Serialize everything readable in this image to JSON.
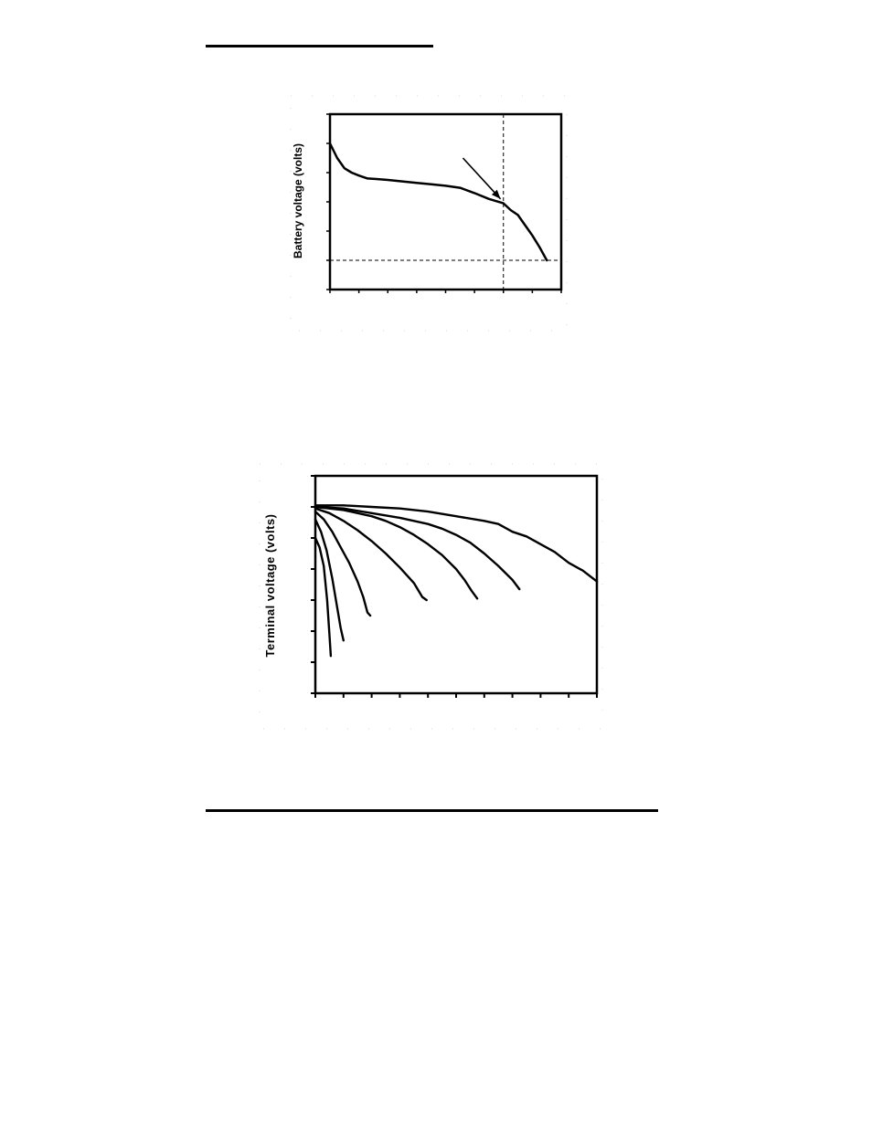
{
  "chart_data": [
    {
      "type": "line",
      "title": "",
      "xlabel": "",
      "ylabel": "Battery voltage (volts)",
      "xlim": [
        0,
        8
      ],
      "ylim": [
        0,
        6
      ],
      "x_ticks": [
        0,
        1,
        2,
        3,
        4,
        5,
        6,
        7,
        8
      ],
      "y_ticks": [
        0,
        1,
        2,
        3,
        4,
        5,
        6
      ],
      "grid": false,
      "series": [
        {
          "x": [
            0,
            0.25,
            0.5,
            0.75,
            1.0,
            1.3,
            1.6,
            2.0,
            2.5,
            3.0,
            3.5,
            4.0,
            4.5,
            5.0,
            5.5,
            6.0,
            6.25,
            6.5,
            6.75,
            7.0,
            7.25,
            7.5
          ],
          "y": [
            5.0,
            4.5,
            4.15,
            4.0,
            3.9,
            3.8,
            3.78,
            3.75,
            3.7,
            3.65,
            3.6,
            3.55,
            3.48,
            3.3,
            3.1,
            2.95,
            2.72,
            2.55,
            2.2,
            1.85,
            1.45,
            1.0
          ]
        }
      ],
      "reference_lines": {
        "x": 6.0,
        "y": 1.0
      },
      "annotation_arrow": {
        "from": [
          4.6,
          4.5
        ],
        "to": [
          5.9,
          3.1
        ]
      }
    },
    {
      "type": "line",
      "title": "",
      "xlabel": "",
      "ylabel": "Terminal voltage (volts)",
      "xlim": [
        0,
        10
      ],
      "ylim": [
        0,
        7
      ],
      "x_ticks": [
        0,
        1,
        2,
        3,
        4,
        5,
        6,
        7,
        8,
        9,
        10
      ],
      "y_ticks": [
        0,
        1,
        2,
        3,
        4,
        5,
        6,
        7
      ],
      "grid": false,
      "series": [
        {
          "x": [
            0,
            0.15,
            0.3,
            0.42,
            0.5,
            0.55
          ],
          "y": [
            5.0,
            4.7,
            4.1,
            3.0,
            1.9,
            1.2
          ]
        },
        {
          "x": [
            0,
            0.2,
            0.4,
            0.6,
            0.75,
            0.9,
            1.0
          ],
          "y": [
            5.6,
            5.2,
            4.6,
            3.7,
            2.9,
            2.1,
            1.7
          ]
        },
        {
          "x": [
            0,
            0.3,
            0.6,
            0.9,
            1.2,
            1.5,
            1.7,
            1.85,
            1.95
          ],
          "y": [
            5.85,
            5.6,
            5.2,
            4.7,
            4.2,
            3.6,
            3.1,
            2.6,
            2.5
          ]
        },
        {
          "x": [
            0,
            0.5,
            1.0,
            1.5,
            2.0,
            2.5,
            3.0,
            3.5,
            3.8,
            3.95
          ],
          "y": [
            5.95,
            5.8,
            5.55,
            5.25,
            4.9,
            4.5,
            4.05,
            3.55,
            3.1,
            3.0
          ]
        },
        {
          "x": [
            0,
            1.0,
            2.0,
            2.5,
            3.0,
            3.5,
            4.0,
            4.5,
            5.0,
            5.3,
            5.55,
            5.75
          ],
          "y": [
            6.0,
            5.9,
            5.7,
            5.55,
            5.35,
            5.1,
            4.8,
            4.45,
            4.0,
            3.65,
            3.3,
            3.05
          ]
        },
        {
          "x": [
            0,
            1.0,
            2.0,
            3.0,
            4.0,
            4.5,
            5.0,
            5.5,
            6.0,
            6.5,
            7.0,
            7.25
          ],
          "y": [
            6.0,
            5.95,
            5.8,
            5.65,
            5.45,
            5.3,
            5.1,
            4.85,
            4.5,
            4.1,
            3.65,
            3.35
          ]
        },
        {
          "x": [
            0,
            1.0,
            2.0,
            3.0,
            4.0,
            5.0,
            6.0,
            6.5,
            7.0,
            7.5,
            8.0,
            8.5,
            9.0,
            9.5,
            10.0
          ],
          "y": [
            6.05,
            6.05,
            6.0,
            5.95,
            5.85,
            5.7,
            5.55,
            5.45,
            5.2,
            5.05,
            4.8,
            4.55,
            4.2,
            3.95,
            3.6
          ]
        }
      ]
    }
  ]
}
